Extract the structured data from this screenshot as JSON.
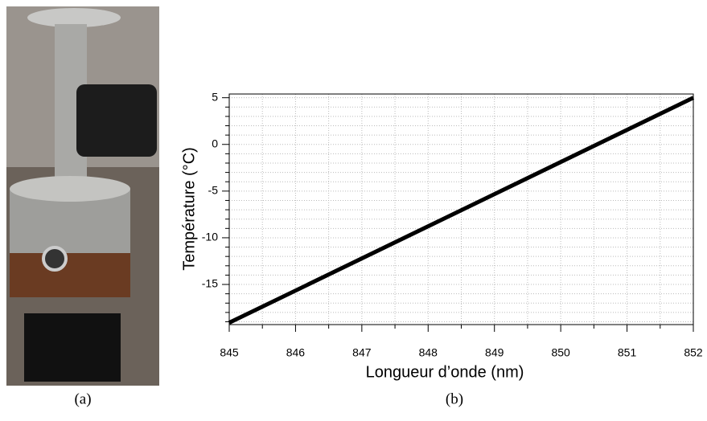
{
  "chart_data": {
    "type": "line",
    "x_label": "Température (°C)",
    "xlabel": "Longueur d’onde (nm)",
    "x": [
      845,
      852
    ],
    "series": [
      {
        "color": "#000000",
        "values": [
          -19.1,
          5.0
        ]
      }
    ],
    "xlim": [
      845,
      852
    ],
    "xticks": [
      845,
      846,
      847,
      848,
      849,
      850,
      851,
      852
    ],
    "ylim": [
      -19.3,
      5.4
    ],
    "yticks": [
      5,
      0,
      -5,
      -10,
      -15
    ],
    "minor_xticks": [
      845.5,
      846.5,
      847.5,
      848.5,
      849.5,
      850.5,
      851.5
    ],
    "minor_yticks": [
      4,
      3,
      2,
      1,
      -1,
      -2,
      -3,
      -4,
      -6,
      -7,
      -8,
      -9,
      -11,
      -12,
      -13,
      -14,
      -16,
      -17,
      -18,
      -19
    ],
    "grid": true
  },
  "captions": [
    "(a)",
    "(b)"
  ]
}
